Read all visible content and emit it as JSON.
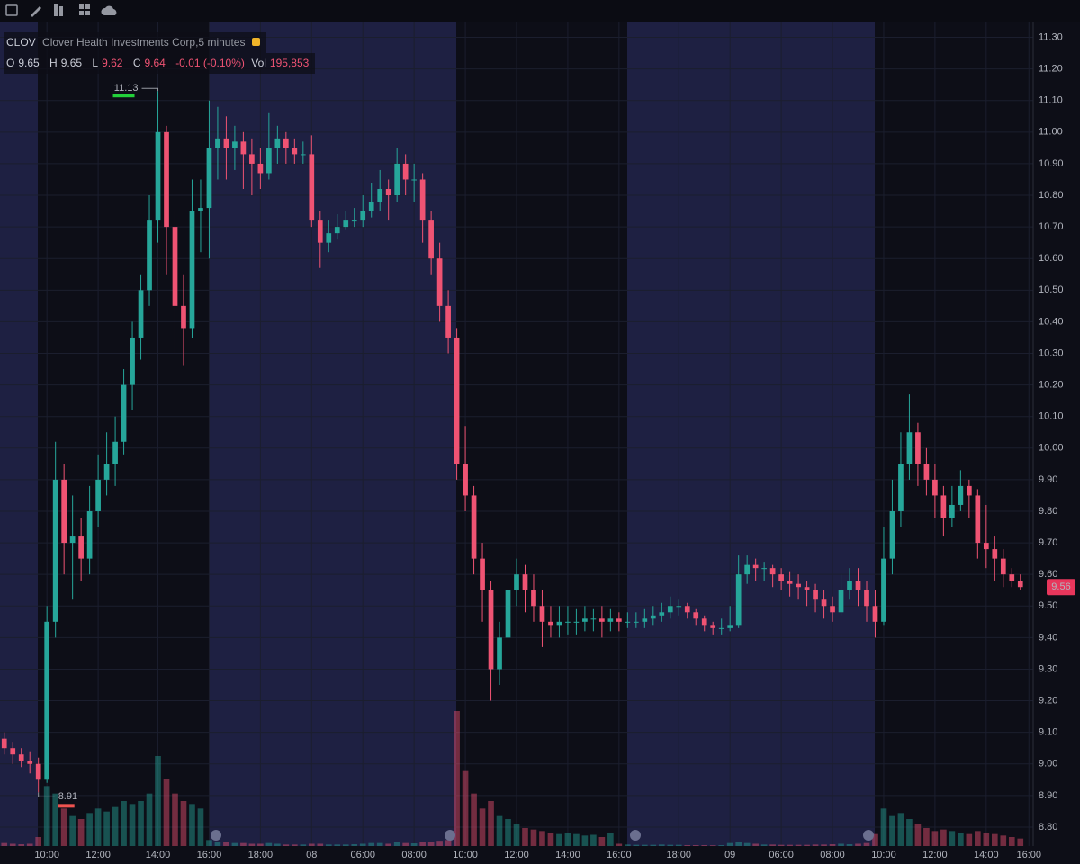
{
  "chart_data": {
    "type": "candlestick",
    "legend_values": {
      "symbol": "CLOV",
      "description": "Clover Health Investments Corp,5 minutes",
      "open_label": "O",
      "open": 9.65,
      "high_label": "H",
      "high": 9.65,
      "low_label": "L",
      "low": 9.62,
      "close_label": "C",
      "close": 9.64,
      "change": "-0.01 (-0.10%)",
      "volume_label": "Vol",
      "volume": "195,853"
    },
    "up_color": "#26a69a",
    "down_color": "#ef5373",
    "grid": true,
    "high": 11.13,
    "low": 8.91,
    "last": 9.56,
    "ylim": [
      8.74,
      11.35
    ],
    "yticks": [
      {
        "value": 8.8,
        "label": "8.80"
      },
      {
        "value": 8.9,
        "label": "8.90"
      },
      {
        "value": 9.0,
        "label": "9.00"
      },
      {
        "value": 9.1,
        "label": "9.10"
      },
      {
        "value": 9.2,
        "label": "9.20"
      },
      {
        "value": 9.3,
        "label": "9.30"
      },
      {
        "value": 9.4,
        "label": "9.40"
      },
      {
        "value": 9.5,
        "label": "9.50"
      },
      {
        "value": 9.6,
        "label": "9.60"
      },
      {
        "value": 9.7,
        "label": "9.70"
      },
      {
        "value": 9.8,
        "label": "9.80"
      },
      {
        "value": 9.9,
        "label": "9.90"
      },
      {
        "value": 10.0,
        "label": "10.00"
      },
      {
        "value": 10.1,
        "label": "10.10"
      },
      {
        "value": 10.2,
        "label": "10.20"
      },
      {
        "value": 10.3,
        "label": "10.30"
      },
      {
        "value": 10.4,
        "label": "10.40"
      },
      {
        "value": 10.5,
        "label": "10.50"
      },
      {
        "value": 10.6,
        "label": "10.60"
      },
      {
        "value": 10.7,
        "label": "10.70"
      },
      {
        "value": 10.8,
        "label": "10.80"
      },
      {
        "value": 10.9,
        "label": "10.90"
      },
      {
        "value": 11.0,
        "label": "11.00"
      },
      {
        "value": 11.1,
        "label": "11.10"
      },
      {
        "value": 11.2,
        "label": "11.20"
      },
      {
        "value": 11.3,
        "label": "11.30"
      }
    ],
    "categories": [
      null,
      null,
      null,
      null,
      null,
      "10:00",
      null,
      null,
      null,
      null,
      null,
      "12:00",
      null,
      null,
      null,
      null,
      null,
      null,
      "14:00",
      null,
      null,
      null,
      null,
      null,
      "16:00",
      null,
      null,
      null,
      null,
      null,
      "18:00",
      null,
      null,
      null,
      null,
      null,
      "08",
      null,
      null,
      null,
      null,
      null,
      "06:00",
      null,
      null,
      null,
      null,
      null,
      "08:00",
      null,
      null,
      null,
      null,
      null,
      "10:00",
      null,
      null,
      null,
      null,
      null,
      "12:00",
      null,
      null,
      null,
      null,
      null,
      "14:00",
      null,
      null,
      null,
      null,
      null,
      "16:00",
      null,
      null,
      null,
      null,
      null,
      null,
      "18:00",
      null,
      null,
      null,
      null,
      null,
      "09",
      null,
      null,
      null,
      null,
      null,
      "06:00",
      null,
      null,
      null,
      null,
      null,
      "08:00",
      null,
      null,
      null,
      null,
      null,
      "10:00",
      null,
      null,
      null,
      null,
      null,
      "12:00",
      null,
      null,
      null,
      null,
      null,
      "14:00",
      null,
      null,
      null,
      null,
      "16:00"
    ],
    "ohlc": [
      [
        9.08,
        9.1,
        9.03,
        9.05
      ],
      [
        9.05,
        9.07,
        9.0,
        9.03
      ],
      [
        9.03,
        9.05,
        8.99,
        9.01
      ],
      [
        9.01,
        9.04,
        8.97,
        9.0
      ],
      [
        9.0,
        9.02,
        8.91,
        8.95
      ],
      [
        8.95,
        9.5,
        8.94,
        9.45
      ],
      [
        9.45,
        10.02,
        9.4,
        9.9
      ],
      [
        9.9,
        9.95,
        9.6,
        9.7
      ],
      [
        9.7,
        9.85,
        9.52,
        9.72
      ],
      [
        9.72,
        9.78,
        9.58,
        9.65
      ],
      [
        9.65,
        9.88,
        9.6,
        9.8
      ],
      [
        9.8,
        9.98,
        9.75,
        9.9
      ],
      [
        9.9,
        10.05,
        9.85,
        9.95
      ],
      [
        9.95,
        10.1,
        9.88,
        10.02
      ],
      [
        10.02,
        10.25,
        9.98,
        10.2
      ],
      [
        10.2,
        10.4,
        10.12,
        10.35
      ],
      [
        10.35,
        10.55,
        10.28,
        10.5
      ],
      [
        10.5,
        10.8,
        10.45,
        10.72
      ],
      [
        10.72,
        11.13,
        10.65,
        11.0
      ],
      [
        11.0,
        11.02,
        10.55,
        10.7
      ],
      [
        10.7,
        10.75,
        10.3,
        10.45
      ],
      [
        10.45,
        10.55,
        10.26,
        10.38
      ],
      [
        10.38,
        10.85,
        10.35,
        10.75
      ],
      [
        10.75,
        10.85,
        10.62,
        10.76
      ],
      [
        10.76,
        11.1,
        10.6,
        10.95
      ],
      [
        10.95,
        11.08,
        10.85,
        10.98
      ],
      [
        10.98,
        11.05,
        10.85,
        10.95
      ],
      [
        10.95,
        11.02,
        10.88,
        10.97
      ],
      [
        10.97,
        11.0,
        10.82,
        10.93
      ],
      [
        10.93,
        10.98,
        10.8,
        10.9
      ],
      [
        10.9,
        10.95,
        10.82,
        10.87
      ],
      [
        10.87,
        11.06,
        10.85,
        10.95
      ],
      [
        10.95,
        11.02,
        10.9,
        10.98
      ],
      [
        10.98,
        11.0,
        10.9,
        10.95
      ],
      [
        10.95,
        10.98,
        10.9,
        10.93
      ],
      [
        10.93,
        10.97,
        10.9,
        10.93
      ],
      [
        10.93,
        10.99,
        10.7,
        10.72
      ],
      [
        10.72,
        10.75,
        10.57,
        10.65
      ],
      [
        10.65,
        10.72,
        10.62,
        10.68
      ],
      [
        10.68,
        10.74,
        10.66,
        10.7
      ],
      [
        10.7,
        10.75,
        10.69,
        10.72
      ],
      [
        10.72,
        10.76,
        10.7,
        10.72
      ],
      [
        10.72,
        10.8,
        10.7,
        10.75
      ],
      [
        10.75,
        10.84,
        10.73,
        10.78
      ],
      [
        10.78,
        10.88,
        10.75,
        10.82
      ],
      [
        10.82,
        10.85,
        10.72,
        10.8
      ],
      [
        10.8,
        10.95,
        10.78,
        10.9
      ],
      [
        10.9,
        10.93,
        10.8,
        10.85
      ],
      [
        10.85,
        10.9,
        10.78,
        10.85
      ],
      [
        10.85,
        10.87,
        10.65,
        10.72
      ],
      [
        10.72,
        10.75,
        10.55,
        10.6
      ],
      [
        10.6,
        10.65,
        10.4,
        10.45
      ],
      [
        10.45,
        10.5,
        10.3,
        10.35
      ],
      [
        10.35,
        10.38,
        9.9,
        9.95
      ],
      [
        9.95,
        10.07,
        9.8,
        9.85
      ],
      [
        9.85,
        9.88,
        9.6,
        9.65
      ],
      [
        9.65,
        9.7,
        9.45,
        9.55
      ],
      [
        9.55,
        9.58,
        9.2,
        9.3
      ],
      [
        9.3,
        9.45,
        9.25,
        9.4
      ],
      [
        9.4,
        9.6,
        9.38,
        9.55
      ],
      [
        9.55,
        9.65,
        9.5,
        9.6
      ],
      [
        9.6,
        9.63,
        9.48,
        9.55
      ],
      [
        9.55,
        9.6,
        9.45,
        9.5
      ],
      [
        9.5,
        9.55,
        9.37,
        9.45
      ],
      [
        9.45,
        9.5,
        9.4,
        9.44
      ],
      [
        9.44,
        9.5,
        9.4,
        9.45
      ],
      [
        9.45,
        9.5,
        9.41,
        9.45
      ],
      [
        9.45,
        9.49,
        9.41,
        9.45
      ],
      [
        9.45,
        9.5,
        9.42,
        9.46
      ],
      [
        9.46,
        9.49,
        9.42,
        9.46
      ],
      [
        9.46,
        9.5,
        9.4,
        9.45
      ],
      [
        9.45,
        9.49,
        9.42,
        9.46
      ],
      [
        9.46,
        9.48,
        9.42,
        9.45
      ],
      [
        9.45,
        9.48,
        9.43,
        9.45
      ],
      [
        9.45,
        9.48,
        9.43,
        9.45
      ],
      [
        9.45,
        9.49,
        9.43,
        9.46
      ],
      [
        9.46,
        9.5,
        9.44,
        9.47
      ],
      [
        9.47,
        9.51,
        9.45,
        9.48
      ],
      [
        9.48,
        9.53,
        9.46,
        9.5
      ],
      [
        9.5,
        9.52,
        9.47,
        9.5
      ],
      [
        9.5,
        9.51,
        9.46,
        9.48
      ],
      [
        9.48,
        9.49,
        9.44,
        9.46
      ],
      [
        9.46,
        9.47,
        9.42,
        9.44
      ],
      [
        9.44,
        9.45,
        9.41,
        9.43
      ],
      [
        9.43,
        9.46,
        9.41,
        9.43
      ],
      [
        9.43,
        9.5,
        9.42,
        9.44
      ],
      [
        9.44,
        9.66,
        9.43,
        9.6
      ],
      [
        9.6,
        9.66,
        9.57,
        9.63
      ],
      [
        9.63,
        9.65,
        9.58,
        9.62
      ],
      [
        9.62,
        9.64,
        9.58,
        9.62
      ],
      [
        9.62,
        9.63,
        9.56,
        9.6
      ],
      [
        9.6,
        9.62,
        9.55,
        9.58
      ],
      [
        9.58,
        9.61,
        9.53,
        9.57
      ],
      [
        9.57,
        9.6,
        9.52,
        9.56
      ],
      [
        9.56,
        9.58,
        9.5,
        9.55
      ],
      [
        9.55,
        9.57,
        9.48,
        9.52
      ],
      [
        9.52,
        9.55,
        9.46,
        9.5
      ],
      [
        9.5,
        9.53,
        9.45,
        9.48
      ],
      [
        9.48,
        9.6,
        9.47,
        9.55
      ],
      [
        9.55,
        9.62,
        9.52,
        9.58
      ],
      [
        9.58,
        9.62,
        9.5,
        9.55
      ],
      [
        9.55,
        9.58,
        9.45,
        9.5
      ],
      [
        9.5,
        9.55,
        9.4,
        9.45
      ],
      [
        9.45,
        9.75,
        9.44,
        9.65
      ],
      [
        9.65,
        9.9,
        9.6,
        9.8
      ],
      [
        9.8,
        10.05,
        9.75,
        9.95
      ],
      [
        9.95,
        10.17,
        9.9,
        10.05
      ],
      [
        10.05,
        10.08,
        9.88,
        9.95
      ],
      [
        9.95,
        10.0,
        9.85,
        9.9
      ],
      [
        9.9,
        9.95,
        9.78,
        9.85
      ],
      [
        9.85,
        9.88,
        9.72,
        9.78
      ],
      [
        9.78,
        9.88,
        9.75,
        9.82
      ],
      [
        9.82,
        9.93,
        9.8,
        9.88
      ],
      [
        9.88,
        9.9,
        9.78,
        9.85
      ],
      [
        9.85,
        9.87,
        9.65,
        9.7
      ],
      [
        9.7,
        9.82,
        9.62,
        9.68
      ],
      [
        9.68,
        9.72,
        9.58,
        9.65
      ],
      [
        9.65,
        9.68,
        9.56,
        9.6
      ],
      [
        9.6,
        9.62,
        9.56,
        9.58
      ],
      [
        9.58,
        9.6,
        9.55,
        9.56
      ],
      null
    ],
    "volume": [
      20000,
      15000,
      12000,
      15000,
      60000,
      400000,
      350000,
      250000,
      200000,
      180000,
      220000,
      250000,
      230000,
      260000,
      300000,
      280000,
      300000,
      350000,
      600000,
      450000,
      350000,
      300000,
      280000,
      250000,
      40000,
      30000,
      25000,
      20000,
      20000,
      15000,
      15000,
      20000,
      15000,
      10000,
      10000,
      10000,
      15000,
      15000,
      10000,
      10000,
      10000,
      12000,
      15000,
      20000,
      20000,
      15000,
      25000,
      20000,
      18000,
      25000,
      30000,
      35000,
      40000,
      900000,
      500000,
      350000,
      250000,
      300000,
      200000,
      180000,
      150000,
      120000,
      110000,
      100000,
      90000,
      80000,
      90000,
      80000,
      70000,
      75000,
      60000,
      90000,
      15000,
      10000,
      8000,
      8000,
      8000,
      10000,
      8000,
      8000,
      6000,
      6000,
      6000,
      5000,
      6000,
      20000,
      30000,
      20000,
      15000,
      10000,
      10000,
      8000,
      8000,
      8000,
      8000,
      10000,
      10000,
      12000,
      15000,
      12000,
      15000,
      20000,
      80000,
      250000,
      200000,
      220000,
      180000,
      150000,
      120000,
      100000,
      110000,
      100000,
      90000,
      80000,
      100000,
      90000,
      80000,
      70000,
      60000,
      50000,
      null
    ]
  }
}
